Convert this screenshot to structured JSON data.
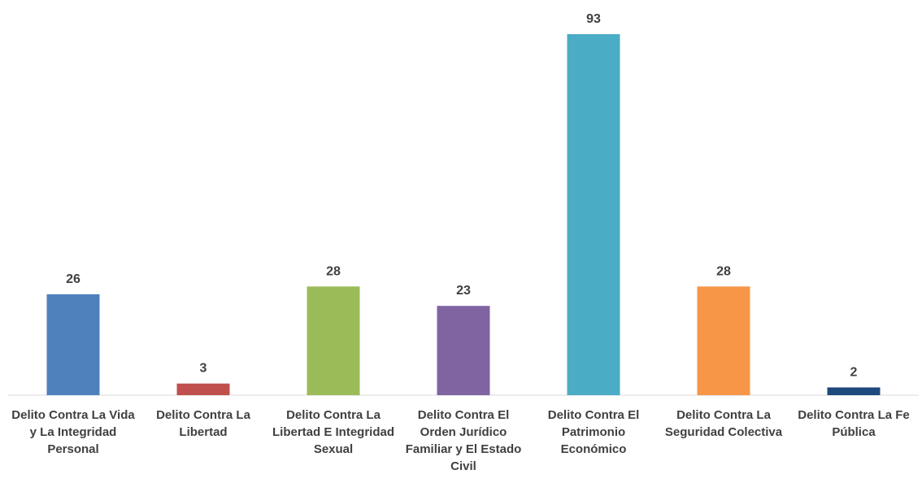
{
  "chart_data": {
    "type": "bar",
    "categories": [
      "Delito Contra La Vida y La Integridad Personal",
      "Delito Contra La Libertad",
      "Delito Contra La Libertad E Integridad Sexual",
      "Delito Contra El Orden Jurídico Familiar y El Estado Civil",
      "Delito Contra El Patrimonio Económico",
      "Delito Contra La Seguridad Colectiva",
      "Delito Contra La Fe Pública"
    ],
    "values": [
      26,
      3,
      28,
      23,
      93,
      28,
      2
    ],
    "data_labels": [
      "26",
      "3",
      "28",
      "23",
      "93",
      "28",
      "2"
    ],
    "colors": [
      "#4F81BD",
      "#C0504D",
      "#9BBB59",
      "#8064A2",
      "#4BACC6",
      "#F79646",
      "#1F497D"
    ],
    "title": "",
    "xlabel": "",
    "ylabel": "",
    "ylim": [
      0,
      93
    ],
    "grid": false,
    "legend": "none"
  }
}
